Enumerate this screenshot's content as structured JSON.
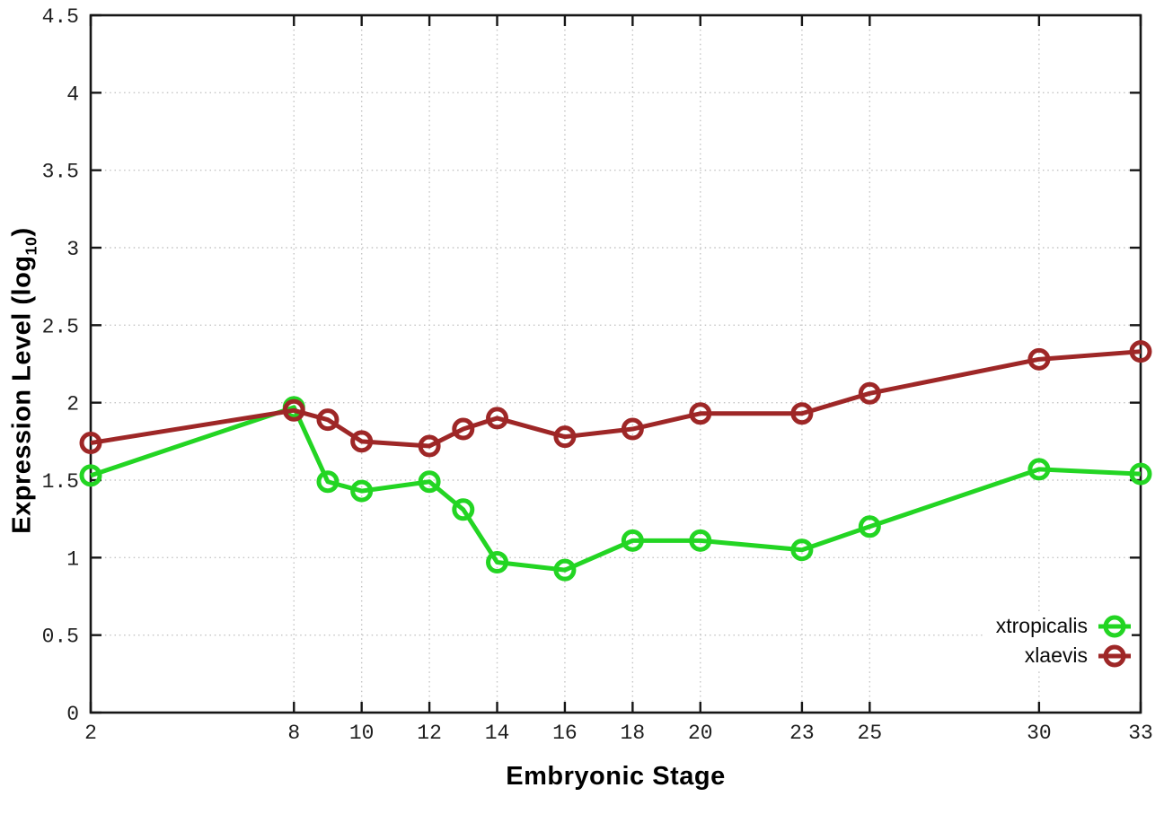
{
  "chart_data": {
    "type": "line",
    "title": "",
    "xlabel": "Embryonic Stage",
    "ylabel": {
      "prefix": "Expression Level (log",
      "subscript": "10",
      "suffix": ")"
    },
    "x": [
      2,
      8,
      9,
      10,
      12,
      13,
      14,
      16,
      18,
      20,
      23,
      25,
      30,
      33
    ],
    "series": [
      {
        "name": "xtropicalis",
        "color": "#23d523",
        "values": [
          1.53,
          1.97,
          1.49,
          1.43,
          1.49,
          1.31,
          0.97,
          0.92,
          1.11,
          1.11,
          1.05,
          1.2,
          1.57,
          1.54
        ]
      },
      {
        "name": "xlaevis",
        "color": "#9e2727",
        "values": [
          1.74,
          1.95,
          1.89,
          1.75,
          1.72,
          1.83,
          1.9,
          1.78,
          1.83,
          1.93,
          1.93,
          2.06,
          2.28,
          2.33
        ]
      }
    ],
    "xlim": [
      2,
      33
    ],
    "ylim": [
      0,
      4.5
    ],
    "xticks": [
      2,
      8,
      10,
      12,
      14,
      16,
      18,
      20,
      23,
      25,
      30,
      33
    ],
    "yticks": [
      0,
      0.5,
      1,
      1.5,
      2,
      2.5,
      3,
      3.5,
      4,
      4.5
    ],
    "grid": true,
    "legend_position": "bottom-right",
    "colors": {
      "grid": "#c4c4c4",
      "axis": "#161616",
      "tick_text": "#1f1f1f",
      "background": "#ffffff"
    }
  }
}
